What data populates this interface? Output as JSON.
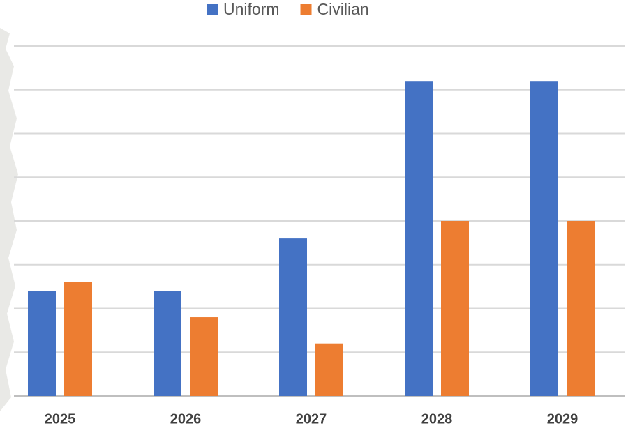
{
  "chart_data": {
    "type": "bar",
    "categories": [
      "2025",
      "2026",
      "2027",
      "2028",
      "2029"
    ],
    "series": [
      {
        "name": "Uniform",
        "color": "#4472c4",
        "values": [
          2.4,
          2.4,
          3.6,
          7.2,
          7.2
        ]
      },
      {
        "name": "Civilian",
        "color": "#ed7d31",
        "values": [
          2.6,
          1.8,
          1.2,
          4.0,
          4.0
        ]
      }
    ],
    "ylim": [
      0,
      8
    ],
    "yticks": [
      0,
      1,
      2,
      3,
      4,
      5,
      6,
      7,
      8
    ],
    "grid": true,
    "legend": "top"
  }
}
